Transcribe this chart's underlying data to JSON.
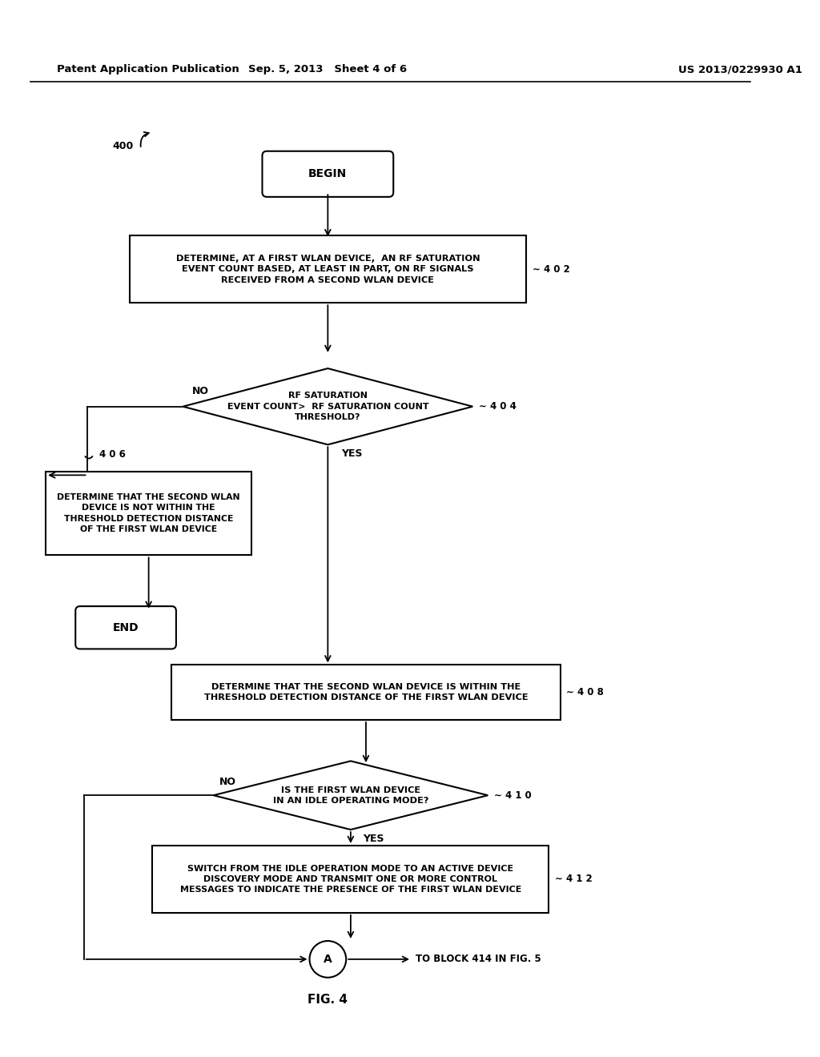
{
  "background_color": "#ffffff",
  "header_left": "Patent Application Publication",
  "header_mid": "Sep. 5, 2013   Sheet 4 of 6",
  "header_right": "US 2013/0229930 A1",
  "fig_label": "FIG. 4",
  "diagram_label": "400"
}
